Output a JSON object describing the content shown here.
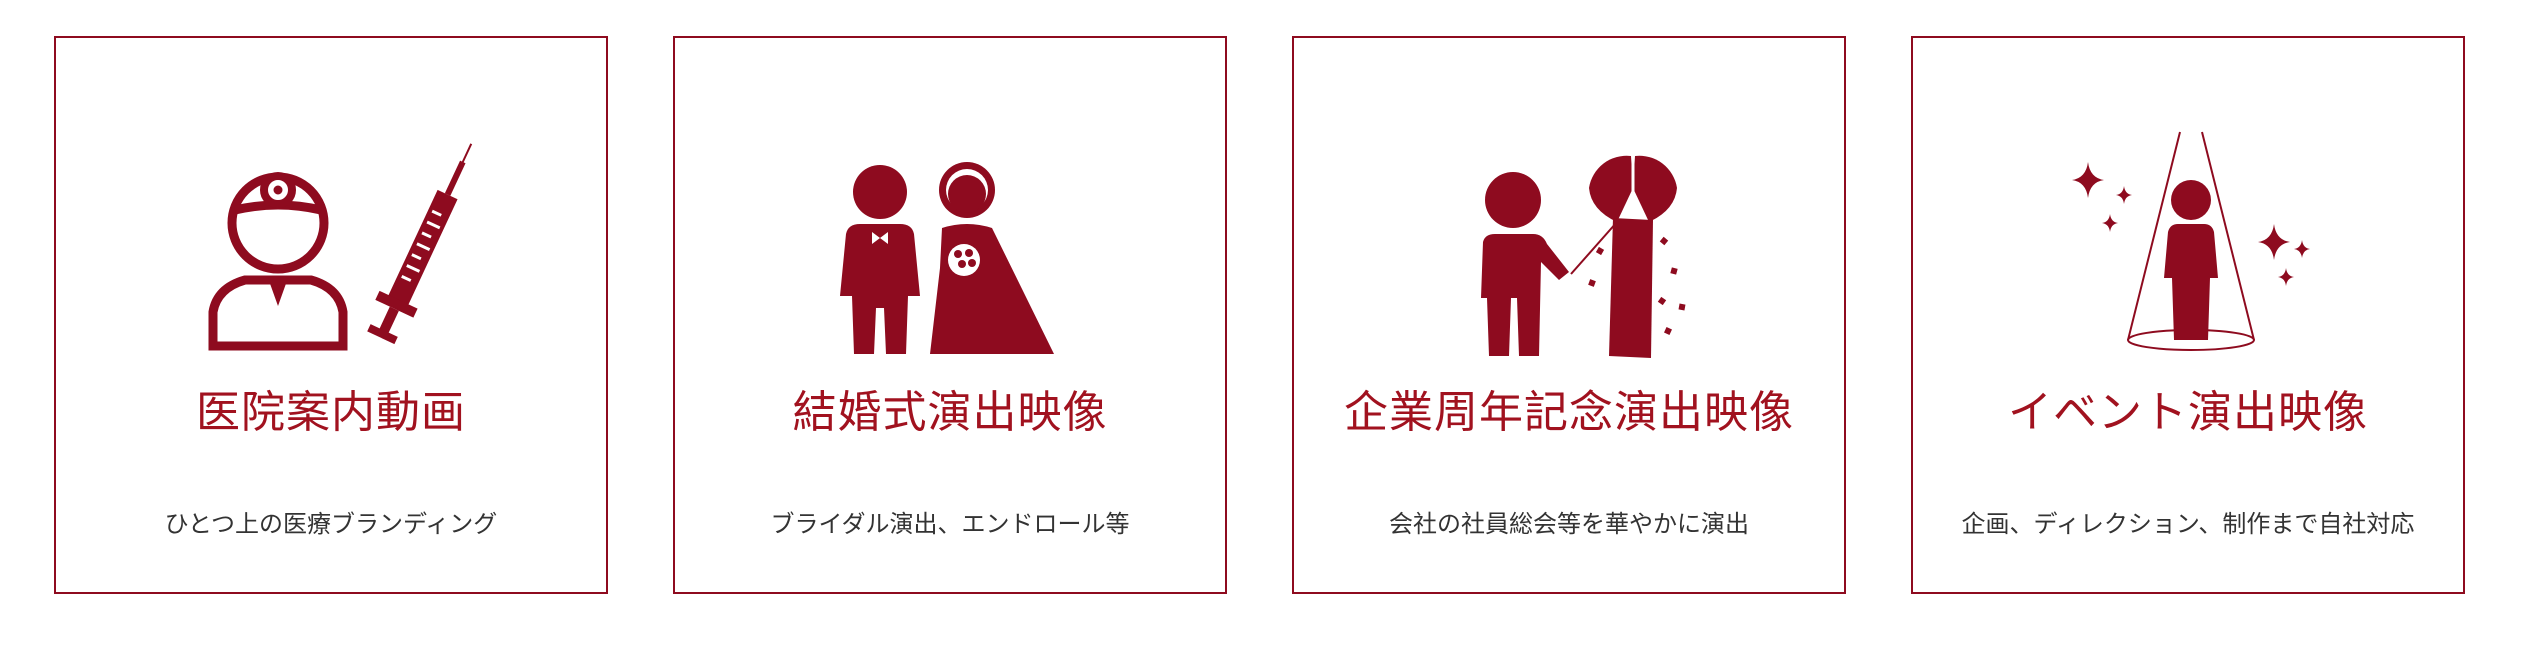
{
  "colors": {
    "accent": "#8e0b1f",
    "title": "#a1121f",
    "text": "#333333",
    "background": "#ffffff"
  },
  "services": [
    {
      "title": "医院案内動画",
      "description": "ひとつ上の医療ブランディング",
      "icon": "doctor-syringe-icon"
    },
    {
      "title": "結婚式演出映像",
      "description": "ブライダル演出、エンドロール等",
      "icon": "wedding-couple-icon"
    },
    {
      "title": "企業周年記念演出映像",
      "description": "会社の社員総会等を華やかに演出",
      "icon": "kusudama-celebration-icon"
    },
    {
      "title": "イベント演出映像",
      "description": "企画、ディレクション、制作まで自社対応",
      "icon": "spotlight-event-icon"
    }
  ]
}
